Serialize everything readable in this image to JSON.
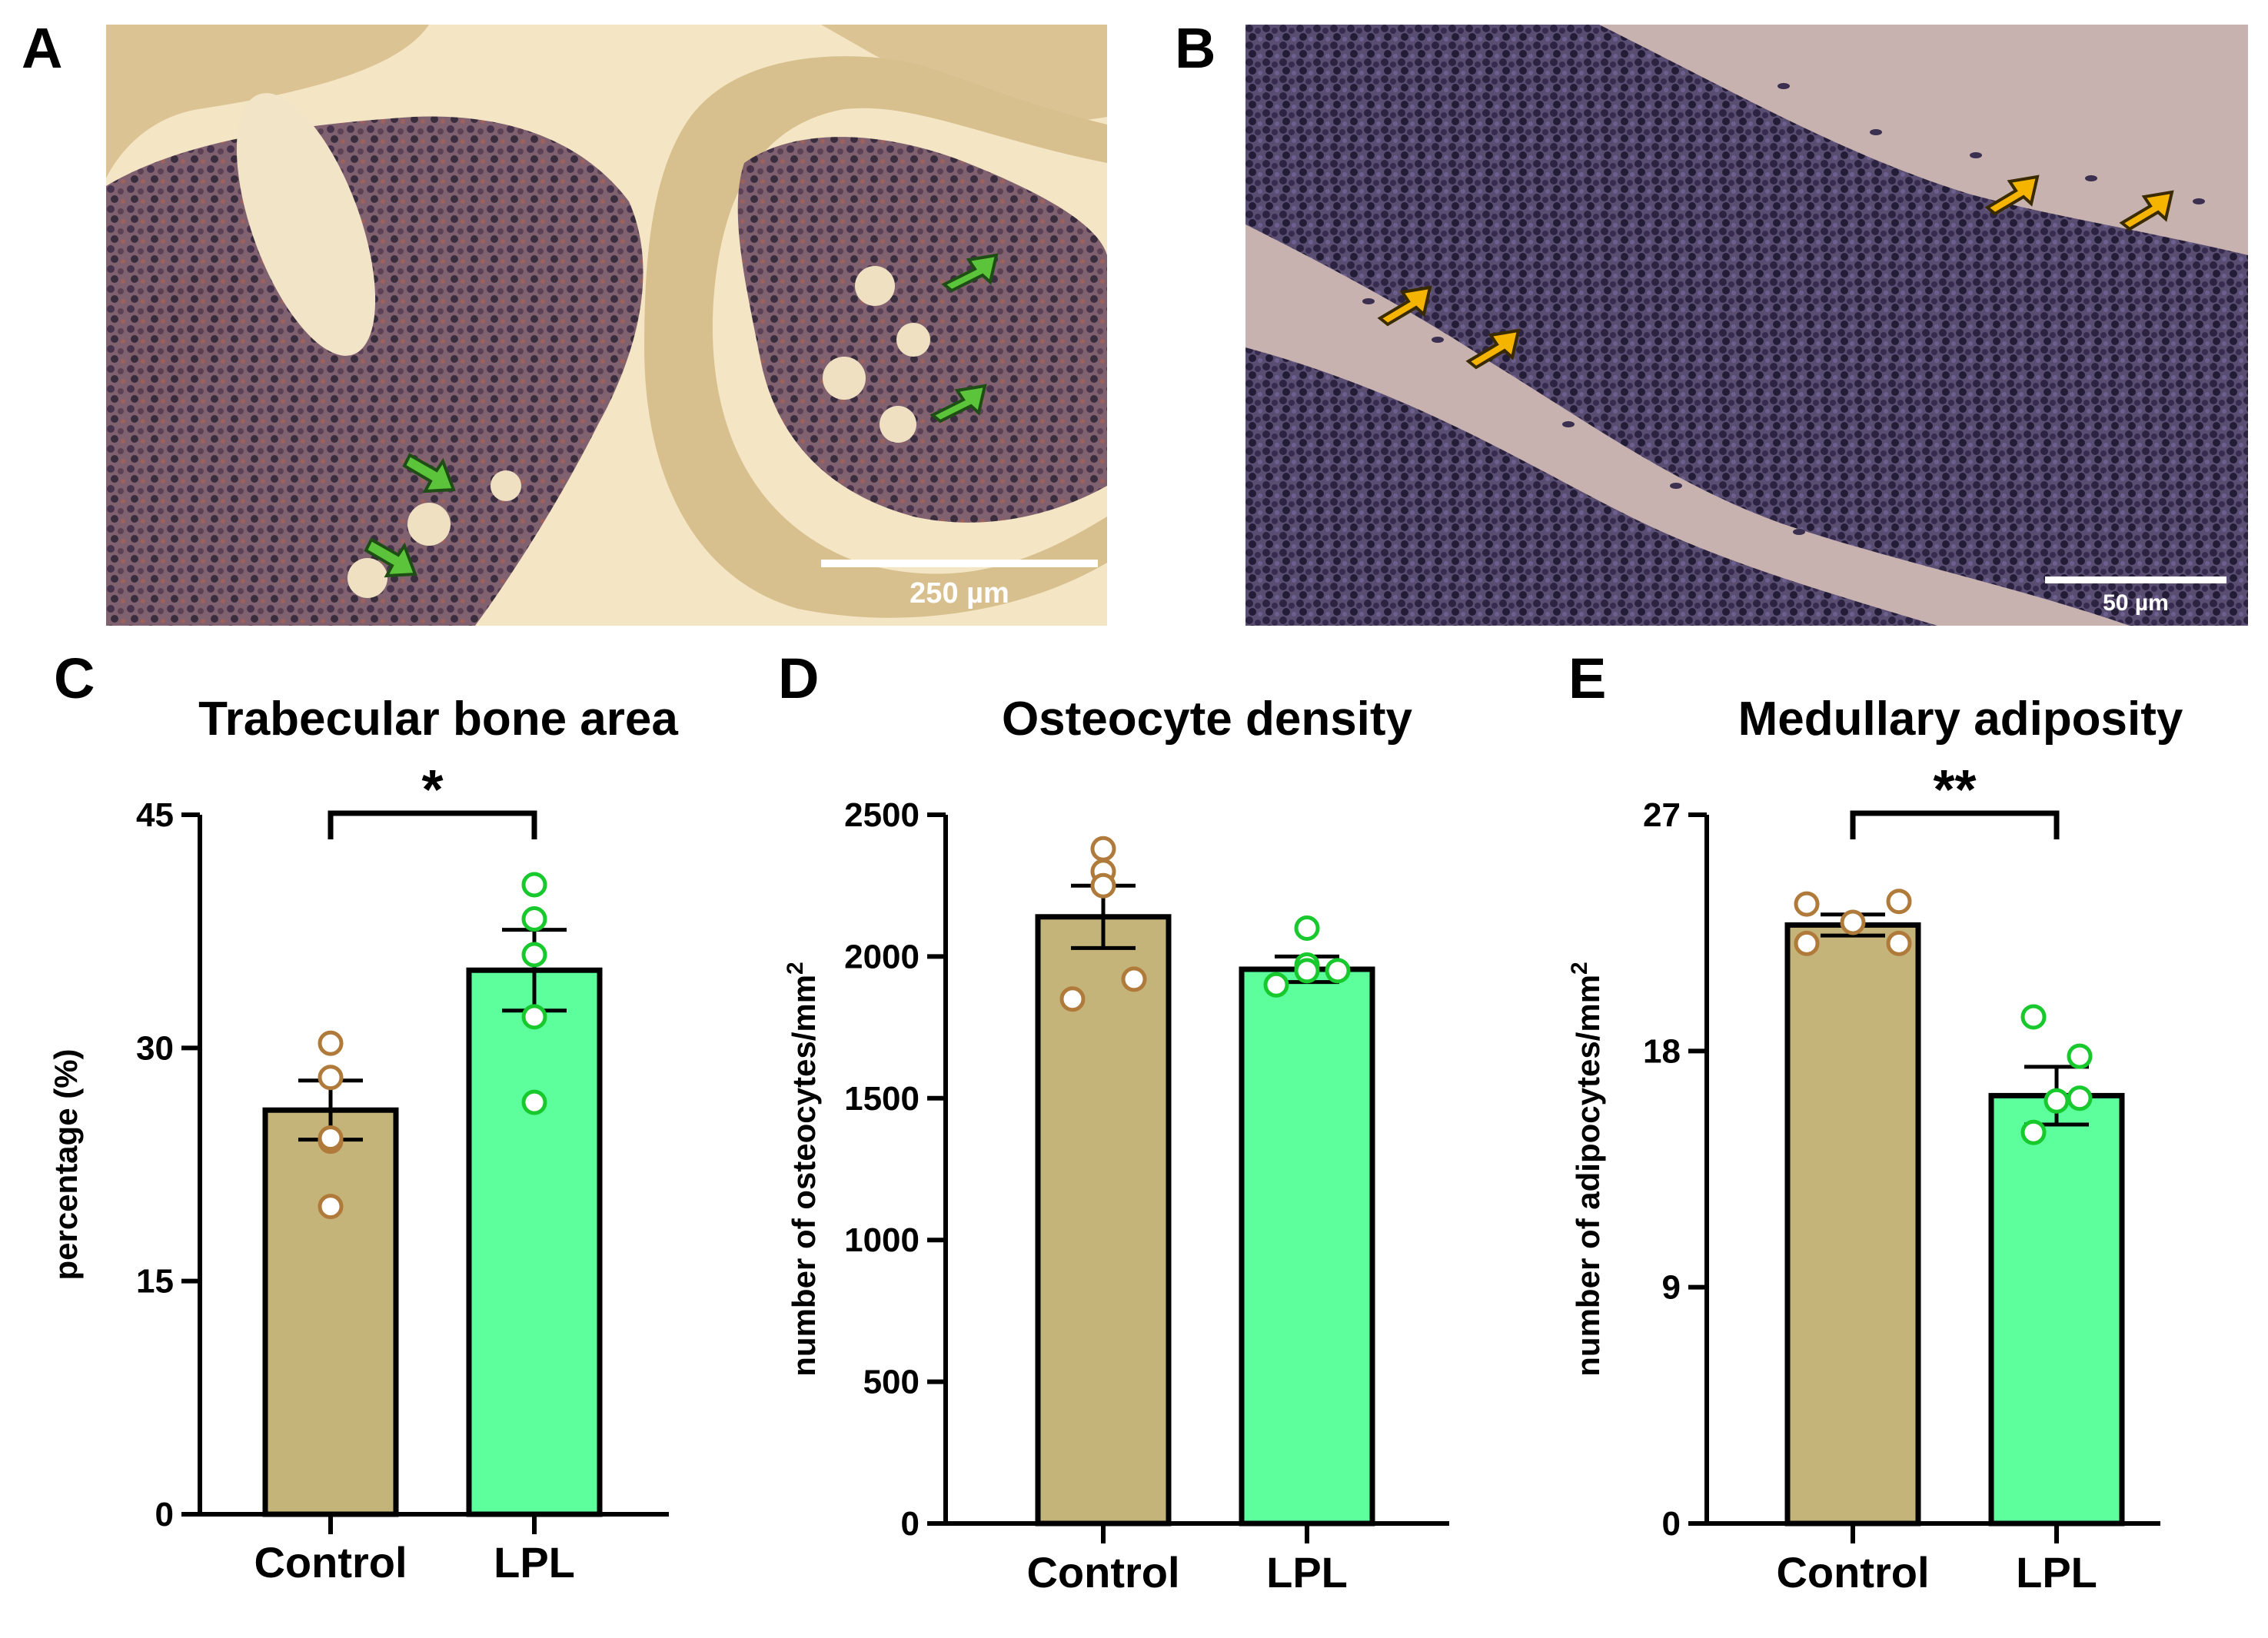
{
  "panels": {
    "A": {
      "letter": "A",
      "scale_label": "250 µm",
      "arrow_color": "#5cc43b",
      "arrow_count": 4
    },
    "B": {
      "letter": "B",
      "scale_label": "50 µm",
      "arrow_color": "#f5b400",
      "arrow_count": 4
    }
  },
  "colors": {
    "control_bar": "#c5b47a",
    "lpl_bar": "#5cff9c",
    "control_point": "#b07a3a",
    "lpl_point": "#18c92e",
    "axis": "#000000"
  },
  "chart_data": [
    {
      "panel": "C",
      "type": "bar",
      "title": "Trabecular bone area",
      "significance": "*",
      "ylabel": "percentage (%)",
      "ylim": [
        0,
        45
      ],
      "yticks": [
        0,
        15,
        30,
        45
      ],
      "categories": [
        "Control",
        "LPL"
      ],
      "values": [
        26.0,
        35.0
      ],
      "sem": [
        1.9,
        2.6
      ],
      "points": [
        [
          30.3,
          28.1,
          24.0,
          19.8,
          24.2
        ],
        [
          40.5,
          38.3,
          36.0,
          32.0,
          26.5
        ]
      ]
    },
    {
      "panel": "D",
      "type": "bar",
      "title": "Osteocyte density",
      "significance": "",
      "ylabel": "number of osteocytes/mm",
      "ylabel_sup": "2",
      "ylim": [
        0,
        2500
      ],
      "yticks": [
        0,
        500,
        1000,
        1500,
        2000,
        2500
      ],
      "categories": [
        "Control",
        "LPL"
      ],
      "values": [
        2140,
        1955
      ],
      "sem": [
        110,
        45
      ],
      "points": [
        [
          2380,
          2300,
          2250,
          1920,
          1850
        ],
        [
          2100,
          1970,
          1950,
          1950,
          1900
        ]
      ]
    },
    {
      "panel": "E",
      "type": "bar",
      "title": "Medullary adiposity",
      "significance": "**",
      "ylabel": "number of adipocytes/mm",
      "ylabel_sup": "2",
      "ylim": [
        0,
        27
      ],
      "yticks": [
        0,
        9,
        18,
        27
      ],
      "categories": [
        "Control",
        "LPL"
      ],
      "values": [
        22.8,
        16.3
      ],
      "sem": [
        0.4,
        1.1
      ],
      "points": [
        [
          23.6,
          23.7,
          22.9,
          22.1,
          22.1
        ],
        [
          19.3,
          17.8,
          16.1,
          16.2,
          14.9
        ]
      ]
    }
  ]
}
